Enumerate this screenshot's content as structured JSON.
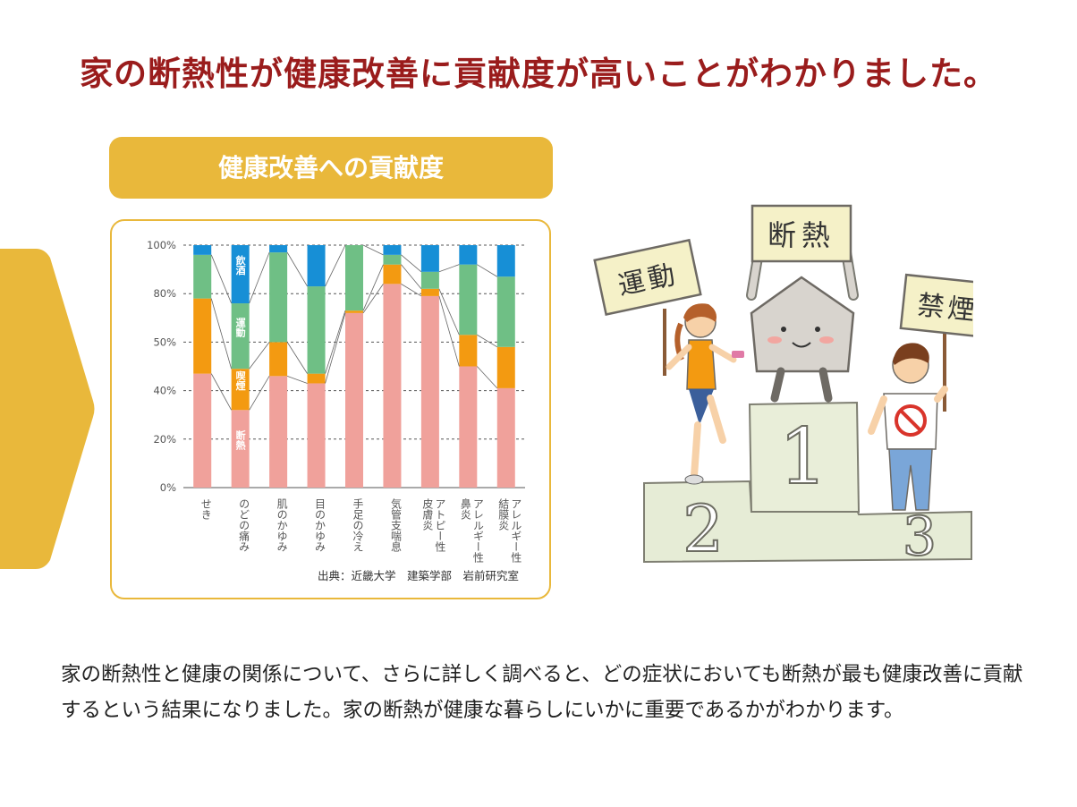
{
  "headline": "家の断熱性が健康改善に貢献度が高いことがわかりました。",
  "chart_title": "健康改善への貢献度",
  "source": "出典：近畿大学　建築学部　岩前研究室",
  "body_text": "家の断熱性と健康の関係について、さらに詳しく調べると、どの症状においても断熱が最も健康改善に貢献するという結果になりました。家の断熱が健康な暮らしにいかに重要であるかがわかります。",
  "illustration": {
    "sign_center": "断熱",
    "sign_left": "運動",
    "sign_right": "禁煙",
    "podium_1": "1",
    "podium_2": "2",
    "podium_3": "3"
  },
  "colors": {
    "accent": "#e9b83b",
    "headline": "#9a1c1c"
  },
  "chart_data": {
    "type": "bar",
    "stacked": true,
    "categories": [
      "せき",
      "のどの痛み",
      "肌のかゆみ",
      "目のかゆみ",
      "手足の冷え",
      "気管支喘息",
      "アトピー性皮膚炎",
      "アレルギー性鼻炎",
      "アレルギー性結膜炎"
    ],
    "category_lines": [
      [
        "せき"
      ],
      [
        "のどの痛み"
      ],
      [
        "肌のかゆみ"
      ],
      [
        "目のかゆみ"
      ],
      [
        "手足の冷え"
      ],
      [
        "気管支喘息"
      ],
      [
        "アトピー性",
        "皮膚炎"
      ],
      [
        "アレルギー性",
        "鼻炎"
      ],
      [
        "アレルギー性",
        "結膜炎"
      ]
    ],
    "series": [
      {
        "name": "断熱",
        "color": "#f0a19b",
        "values": [
          47,
          32,
          46,
          43,
          72,
          84,
          79,
          50,
          41
        ]
      },
      {
        "name": "喫煙",
        "color": "#f39a11",
        "values": [
          31,
          17,
          14,
          4,
          1,
          8,
          3,
          13,
          17
        ]
      },
      {
        "name": "運動",
        "color": "#6fbf85",
        "values": [
          18,
          27,
          37,
          36,
          27,
          4,
          7,
          29,
          29
        ]
      },
      {
        "name": "飲酒",
        "color": "#178fd6",
        "values": [
          4,
          24,
          3,
          17,
          0,
          4,
          11,
          8,
          13
        ]
      }
    ],
    "y_ticks": [
      "0%",
      "20%",
      "40%",
      "50%",
      "80%",
      "100%"
    ],
    "ylim": [
      0,
      100
    ],
    "grid": true
  }
}
